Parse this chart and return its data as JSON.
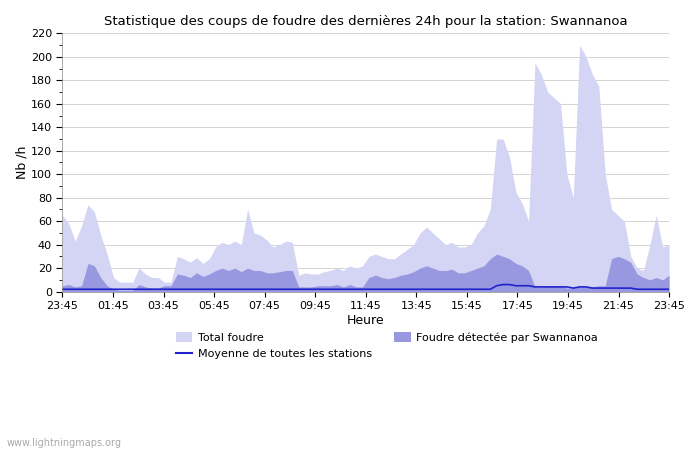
{
  "title": "Statistique des coups de foudre des dernières 24h pour la station: Swannanoa",
  "xlabel": "Heure",
  "ylabel": "Nb /h",
  "watermark": "www.lightningmaps.org",
  "x_labels": [
    "23:45",
    "01:45",
    "03:45",
    "05:45",
    "07:45",
    "09:45",
    "11:45",
    "13:45",
    "15:45",
    "17:45",
    "19:45",
    "21:45",
    "23:45"
  ],
  "ylim": [
    0,
    220
  ],
  "yticks": [
    0,
    20,
    40,
    60,
    80,
    100,
    120,
    140,
    160,
    180,
    200,
    220
  ],
  "color_total": "#d4d4f4",
  "color_local": "#9898e0",
  "color_mean": "#2222cc",
  "total_foudre": [
    65,
    58,
    43,
    56,
    74,
    68,
    48,
    32,
    12,
    8,
    8,
    8,
    20,
    15,
    12,
    12,
    8,
    8,
    30,
    28,
    25,
    29,
    24,
    28,
    38,
    42,
    40,
    43,
    40,
    70,
    50,
    48,
    44,
    38,
    40,
    43,
    42,
    14,
    16,
    15,
    15,
    17,
    18,
    20,
    18,
    22,
    20,
    22,
    30,
    32,
    30,
    28,
    28,
    32,
    36,
    40,
    50,
    55,
    50,
    45,
    40,
    42,
    38,
    38,
    40,
    50,
    56,
    70,
    130,
    130,
    115,
    85,
    75,
    60,
    195,
    185,
    170,
    165,
    160,
    100,
    80,
    210,
    200,
    185,
    175,
    100,
    70,
    65,
    60,
    30,
    20,
    18,
    40,
    65,
    38,
    40
  ],
  "local_foudre": [
    5,
    6,
    4,
    5,
    24,
    22,
    12,
    5,
    2,
    1,
    1,
    1,
    6,
    4,
    3,
    3,
    5,
    5,
    15,
    14,
    12,
    16,
    13,
    15,
    18,
    20,
    18,
    20,
    17,
    20,
    18,
    18,
    16,
    16,
    17,
    18,
    18,
    4,
    4,
    4,
    5,
    5,
    5,
    6,
    4,
    6,
    4,
    4,
    12,
    14,
    12,
    11,
    12,
    14,
    15,
    17,
    20,
    22,
    20,
    18,
    18,
    19,
    16,
    16,
    18,
    20,
    22,
    28,
    32,
    30,
    28,
    24,
    22,
    18,
    4,
    4,
    5,
    5,
    5,
    3,
    3,
    4,
    4,
    4,
    5,
    5,
    28,
    30,
    28,
    25,
    15,
    12,
    10,
    12,
    10,
    14
  ],
  "mean_line": [
    2,
    2,
    2,
    2,
    2,
    2,
    2,
    2,
    2,
    2,
    2,
    2,
    2,
    2,
    2,
    2,
    2,
    2,
    2,
    2,
    2,
    2,
    2,
    2,
    2,
    2,
    2,
    2,
    2,
    2,
    2,
    2,
    2,
    2,
    2,
    2,
    2,
    2,
    2,
    2,
    2,
    2,
    2,
    2,
    2,
    2,
    2,
    2,
    2,
    2,
    2,
    2,
    2,
    2,
    2,
    2,
    2,
    2,
    2,
    2,
    2,
    2,
    2,
    2,
    2,
    2,
    2,
    2,
    5,
    6,
    6,
    5,
    5,
    5,
    4,
    4,
    4,
    4,
    4,
    4,
    3,
    4,
    4,
    3,
    3,
    3,
    3,
    3,
    3,
    3,
    2,
    2,
    2,
    2,
    2,
    2
  ]
}
